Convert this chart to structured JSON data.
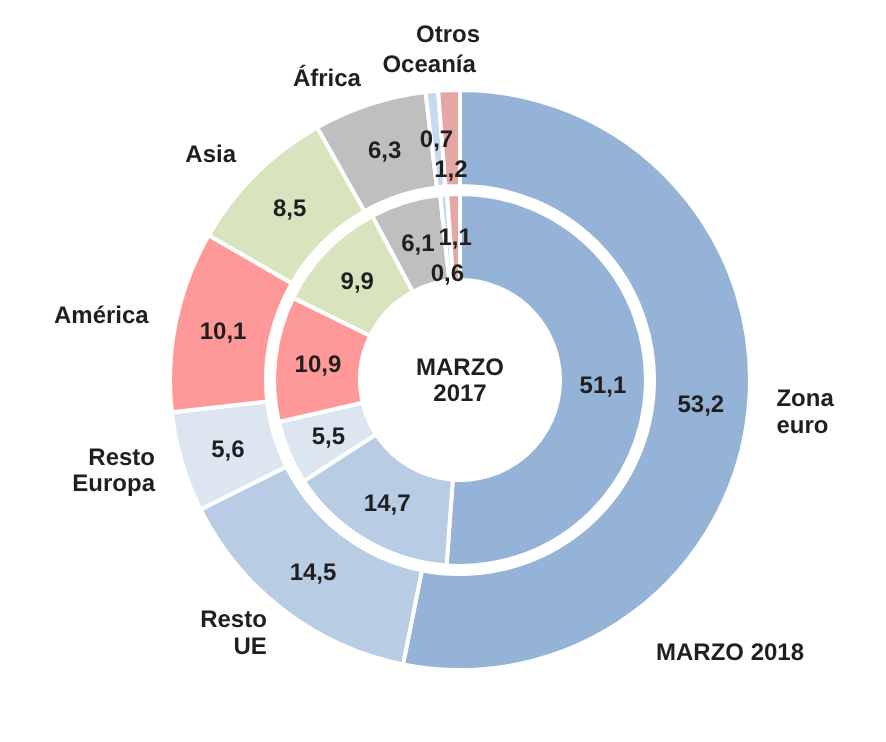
{
  "chart_data": {
    "type": "donut",
    "categories": [
      "Zona euro",
      "Resto UE",
      "Resto Europa",
      "América",
      "Asia",
      "África",
      "Oceanía",
      "Otros"
    ],
    "colors": [
      "#95b3d7",
      "#b8cce4",
      "#dce6f1",
      "#ff9999",
      "#d7e4bd",
      "#bfbfbf",
      "#c5d9f1",
      "#e6a6a5"
    ],
    "series": [
      {
        "name": "MARZO 2018",
        "values": [
          53.2,
          14.5,
          5.6,
          10.1,
          8.5,
          6.3,
          0.7,
          1.2
        ],
        "value_labels": [
          "53,2",
          "14,5",
          "5,6",
          "10,1",
          "8,5",
          "6,3",
          "0,7",
          "1,2"
        ]
      },
      {
        "name": "MARZO 2017",
        "values": [
          51.1,
          14.7,
          5.5,
          10.9,
          9.9,
          6.1,
          0.6,
          1.1
        ],
        "value_labels": [
          "51,1",
          "14,7",
          "5,5",
          "10,9",
          "9,9",
          "6,1",
          "0,6",
          "1,1"
        ]
      }
    ],
    "legend": false
  }
}
